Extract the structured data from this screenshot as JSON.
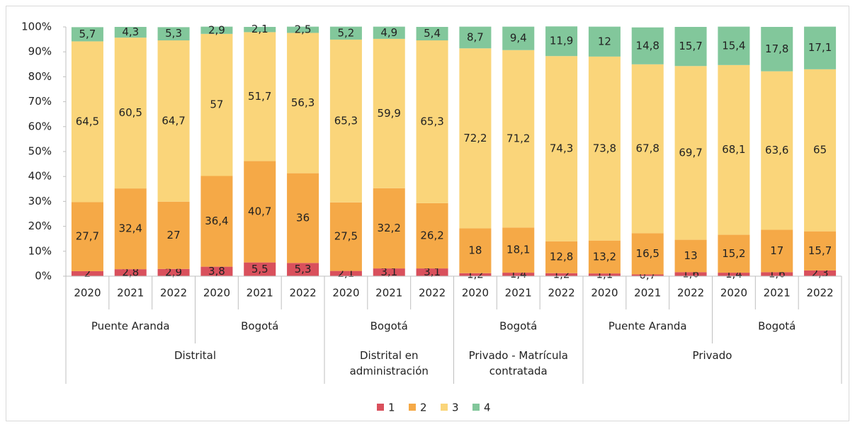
{
  "chart_data": {
    "type": "stacked_bar",
    "categories": [
      "2020",
      "2021",
      "2022",
      "2020",
      "2021",
      "2022",
      "2020",
      "2021",
      "2022",
      "2020",
      "2021",
      "2022",
      "2020",
      "2021",
      "2022",
      "2020",
      "2021",
      "2022"
    ],
    "level2": [
      "Puente Aranda",
      null,
      null,
      "Bogotá",
      null,
      null,
      "Bogotá",
      null,
      null,
      "Bogotá",
      null,
      null,
      "Puente Aranda",
      null,
      null,
      "Bogotá",
      null,
      null
    ],
    "level3": [
      "Distrital",
      null,
      null,
      null,
      null,
      null,
      "Distrital en administración",
      null,
      null,
      "Privado - Matrícula contratada",
      null,
      null,
      "Privado",
      null,
      null,
      null,
      null,
      null
    ],
    "series": [
      {
        "name": "1",
        "color": "#d9505c",
        "values": [
          2,
          2.8,
          2.9,
          3.8,
          5.5,
          5.3,
          2.1,
          3.1,
          3.1,
          1.2,
          1.4,
          1.2,
          1.1,
          0.7,
          1.6,
          1.4,
          1.6,
          2.3
        ],
        "value_labels": [
          "2",
          "2,8",
          "2,9",
          "3,8",
          "5,5",
          "5,3",
          "2,1",
          "3,1",
          "3,1",
          "1,2",
          "1,4",
          "1,2",
          "1,1",
          "0,7",
          "1,6",
          "1,4",
          "1,6",
          "2,3"
        ]
      },
      {
        "name": "2",
        "color": "#f5a947",
        "values": [
          27.7,
          32.4,
          27,
          36.4,
          40.7,
          36,
          27.5,
          32.2,
          26.2,
          18,
          18.1,
          12.8,
          13.2,
          16.5,
          13,
          15.2,
          17,
          15.7
        ],
        "value_labels": [
          "27,7",
          "32,4",
          "27",
          "36,4",
          "40,7",
          "36",
          "27,5",
          "32,2",
          "26,2",
          "18",
          "18,1",
          "12,8",
          "13,2",
          "16,5",
          "13",
          "15,2",
          "17",
          "15,7"
        ]
      },
      {
        "name": "3",
        "color": "#fad57a",
        "values": [
          64.5,
          60.5,
          64.7,
          57,
          51.7,
          56.3,
          65.3,
          59.9,
          65.3,
          72.2,
          71.2,
          74.3,
          73.8,
          67.8,
          69.7,
          68.1,
          63.6,
          65
        ],
        "value_labels": [
          "64,5",
          "60,5",
          "64,7",
          "57",
          "51,7",
          "56,3",
          "65,3",
          "59,9",
          "65,3",
          "72,2",
          "71,2",
          "74,3",
          "73,8",
          "67,8",
          "69,7",
          "68,1",
          "63,6",
          "65"
        ]
      },
      {
        "name": "4",
        "color": "#82c79b",
        "values": [
          5.7,
          4.3,
          5.3,
          2.9,
          2.1,
          2.5,
          5.2,
          4.9,
          5.4,
          8.7,
          9.4,
          11.9,
          12,
          14.8,
          15.7,
          15.4,
          17.8,
          17.1
        ],
        "value_labels": [
          "5,7",
          "4,3",
          "5,3",
          "2,9",
          "2,1",
          "2,5",
          "5,2",
          "4,9",
          "5,4",
          "8,7",
          "9,4",
          "11,9",
          "12",
          "14,8",
          "15,7",
          "15,4",
          "17,8",
          "17,1"
        ]
      }
    ],
    "ylim": [
      0,
      100
    ],
    "yticks": [
      {
        "value": 0,
        "label": "0%"
      },
      {
        "value": 10,
        "label": "10%"
      },
      {
        "value": 20,
        "label": "20%"
      },
      {
        "value": 30,
        "label": "30%"
      },
      {
        "value": 40,
        "label": "40%"
      },
      {
        "value": 50,
        "label": "50%"
      },
      {
        "value": 60,
        "label": "60%"
      },
      {
        "value": 70,
        "label": "70%"
      },
      {
        "value": 80,
        "label": "80%"
      },
      {
        "value": 90,
        "label": "90%"
      },
      {
        "value": 100,
        "label": "100%"
      }
    ],
    "grid": false,
    "legend": "bottom"
  }
}
